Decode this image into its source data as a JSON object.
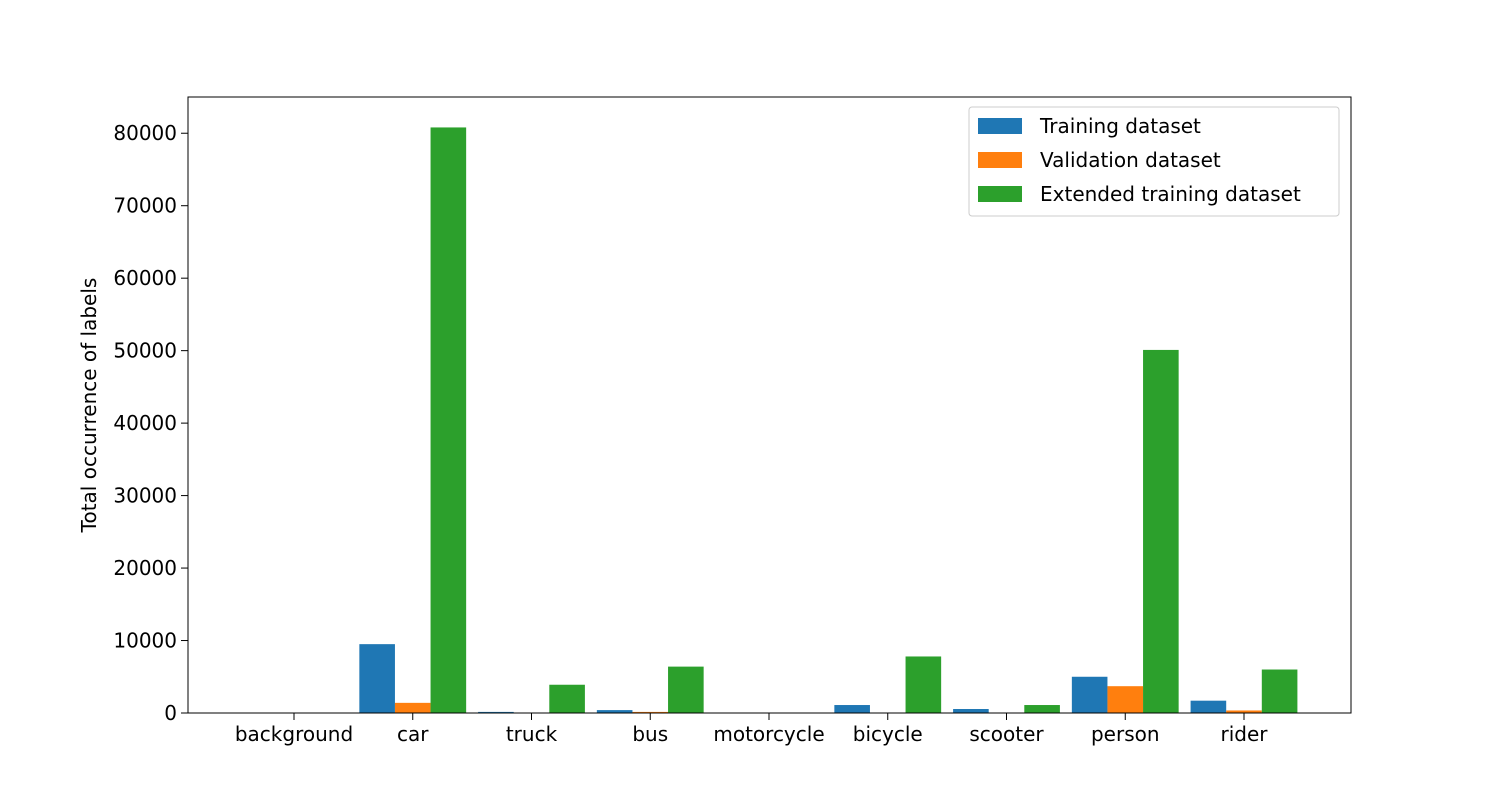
{
  "chart_data": {
    "type": "bar",
    "title": "",
    "xlabel": "",
    "ylabel": "Total occurrence of labels",
    "categories": [
      "background",
      "car",
      "truck",
      "bus",
      "motorcycle",
      "bicycle",
      "scooter",
      "person",
      "rider"
    ],
    "series": [
      {
        "name": "Training dataset",
        "color": "#1f77b4",
        "values": [
          0,
          9500,
          150,
          400,
          0,
          1100,
          550,
          5000,
          1700
        ]
      },
      {
        "name": "Validation dataset",
        "color": "#ff7f0e",
        "values": [
          0,
          1400,
          20,
          150,
          0,
          50,
          30,
          3700,
          350
        ]
      },
      {
        "name": "Extended training dataset",
        "color": "#2ca02c",
        "values": [
          0,
          80800,
          3900,
          6400,
          0,
          7800,
          1100,
          50100,
          6000
        ]
      }
    ],
    "ylim": [
      0,
      85000
    ],
    "yticks": [
      0,
      10000,
      20000,
      30000,
      40000,
      50000,
      60000,
      70000,
      80000
    ],
    "ytick_labels": [
      "0",
      "10000",
      "20000",
      "30000",
      "40000",
      "50000",
      "60000",
      "70000",
      "80000"
    ],
    "grid": false,
    "legend_position": "top-right"
  }
}
